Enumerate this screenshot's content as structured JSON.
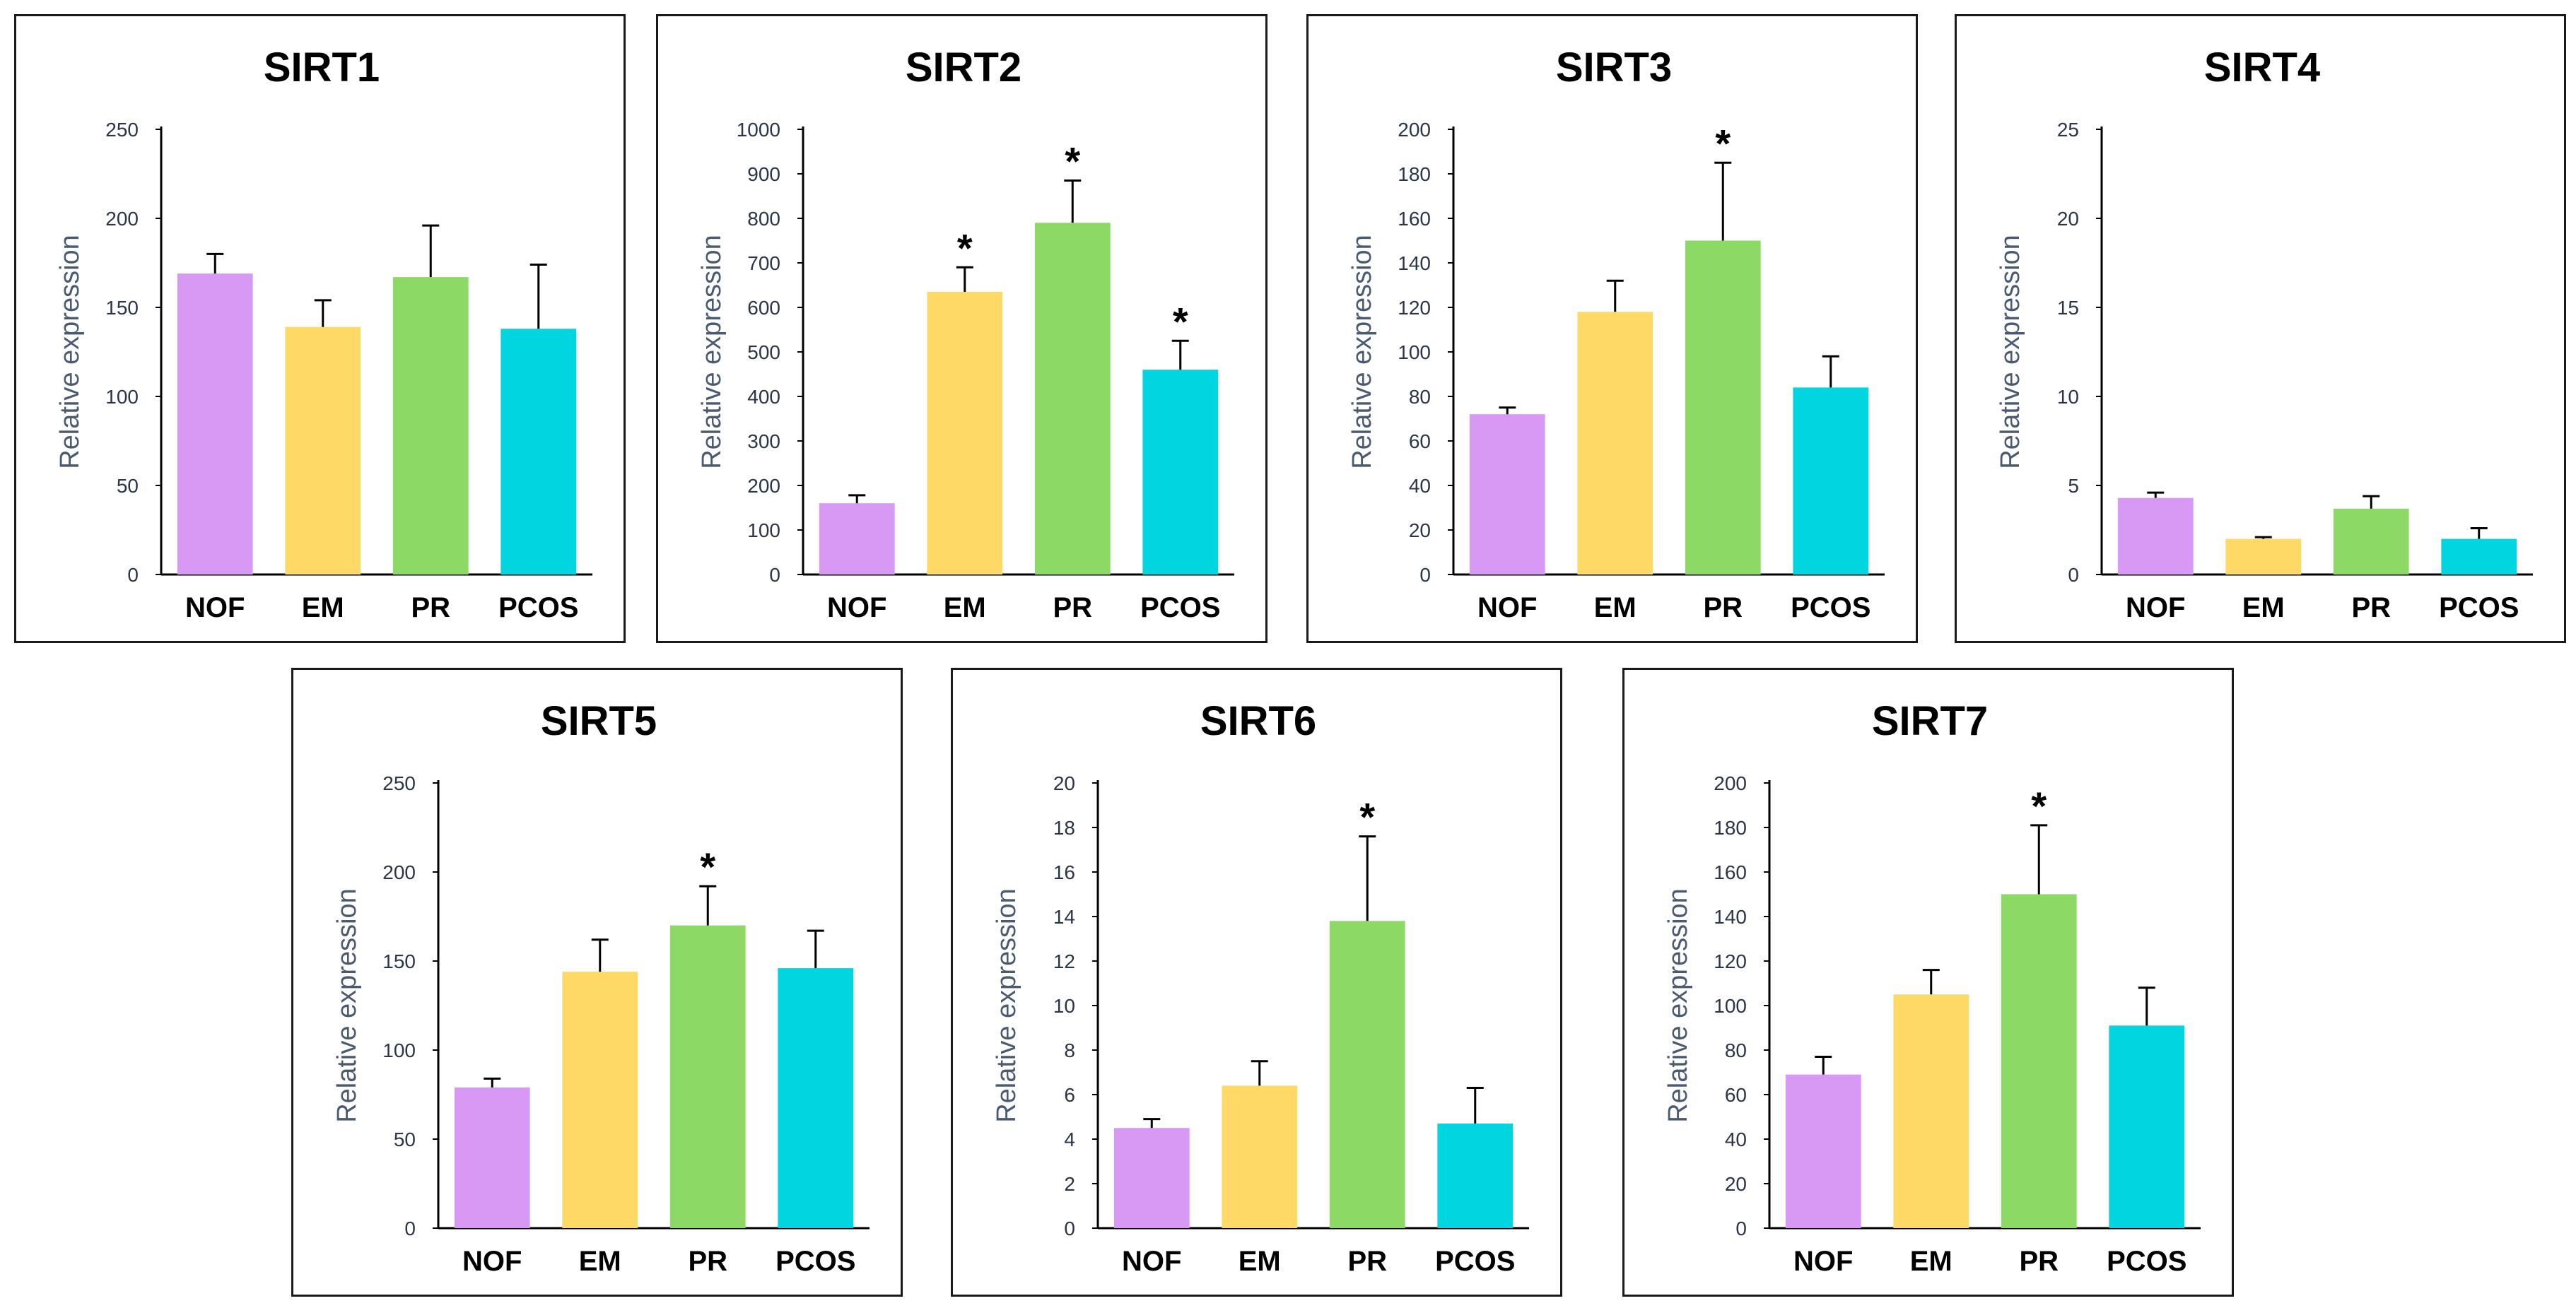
{
  "chart_data": [
    {
      "type": "bar",
      "title": "SIRT1",
      "ylabel": "Relative expression",
      "categories": [
        "NOF",
        "EM",
        "PR",
        "PCOS"
      ],
      "values": [
        169,
        139,
        167,
        138
      ],
      "errors": [
        11,
        15,
        29,
        36
      ],
      "significant": [
        false,
        false,
        false,
        false
      ],
      "marker": "*",
      "ylim": [
        0,
        250
      ],
      "yticks": [
        0,
        50,
        100,
        150,
        200,
        250
      ]
    },
    {
      "type": "bar",
      "title": "SIRT2",
      "ylabel": "Relative expression",
      "categories": [
        "NOF",
        "EM",
        "PR",
        "PCOS"
      ],
      "values": [
        160,
        635,
        790,
        460
      ],
      "errors": [
        18,
        55,
        95,
        65
      ],
      "significant": [
        false,
        true,
        true,
        true
      ],
      "marker": "*",
      "ylim": [
        0,
        1000
      ],
      "yticks": [
        0,
        100,
        200,
        300,
        400,
        500,
        600,
        700,
        800,
        900,
        1000
      ]
    },
    {
      "type": "bar",
      "title": "SIRT3",
      "ylabel": "Relative expression",
      "categories": [
        "NOF",
        "EM",
        "PR",
        "PCOS"
      ],
      "values": [
        72,
        118,
        150,
        84
      ],
      "errors": [
        3,
        14,
        35,
        14
      ],
      "significant": [
        false,
        false,
        true,
        false
      ],
      "marker": "*",
      "ylim": [
        0,
        200
      ],
      "yticks": [
        0,
        20,
        40,
        60,
        80,
        100,
        120,
        140,
        160,
        180,
        200
      ]
    },
    {
      "type": "bar",
      "title": "SIRT4",
      "ylabel": "Relative expression",
      "categories": [
        "NOF",
        "EM",
        "PR",
        "PCOS"
      ],
      "values": [
        4.3,
        2.0,
        3.7,
        2.0
      ],
      "errors": [
        0.3,
        0.1,
        0.7,
        0.6
      ],
      "significant": [
        false,
        false,
        false,
        false
      ],
      "marker": "*",
      "ylim": [
        0,
        25
      ],
      "yticks": [
        0,
        5,
        10,
        15,
        20,
        25
      ]
    },
    {
      "type": "bar",
      "title": "SIRT5",
      "ylabel": "Relative expression",
      "categories": [
        "NOF",
        "EM",
        "PR",
        "PCOS"
      ],
      "values": [
        79,
        144,
        170,
        146
      ],
      "errors": [
        5,
        18,
        22,
        21
      ],
      "significant": [
        false,
        false,
        true,
        false
      ],
      "marker": "*",
      "ylim": [
        0,
        250
      ],
      "yticks": [
        0,
        50,
        100,
        150,
        200,
        250
      ]
    },
    {
      "type": "bar",
      "title": "SIRT6",
      "ylabel": "Relative expression",
      "categories": [
        "NOF",
        "EM",
        "PR",
        "PCOS"
      ],
      "values": [
        4.5,
        6.4,
        13.8,
        4.7
      ],
      "errors": [
        0.4,
        1.1,
        3.8,
        1.6
      ],
      "significant": [
        false,
        false,
        true,
        false
      ],
      "marker": "*",
      "ylim": [
        0,
        20
      ],
      "yticks": [
        0,
        2,
        4,
        6,
        8,
        10,
        12,
        14,
        16,
        18,
        20
      ]
    },
    {
      "type": "bar",
      "title": "SIRT7",
      "ylabel": "Relative expression",
      "categories": [
        "NOF",
        "EM",
        "PR",
        "PCOS"
      ],
      "values": [
        69,
        105,
        150,
        91
      ],
      "errors": [
        8,
        11,
        31,
        17
      ],
      "significant": [
        false,
        false,
        true,
        false
      ],
      "marker": "*",
      "ylim": [
        0,
        200
      ],
      "yticks": [
        0,
        20,
        40,
        60,
        80,
        100,
        120,
        140,
        160,
        180,
        200
      ]
    }
  ],
  "colors": {
    "NOF": "#d899f5",
    "EM": "#ffd966",
    "PR": "#8cd965",
    "PCOS": "#00d5e0",
    "axis": "#000000",
    "ylabel": "#4a5a70"
  }
}
